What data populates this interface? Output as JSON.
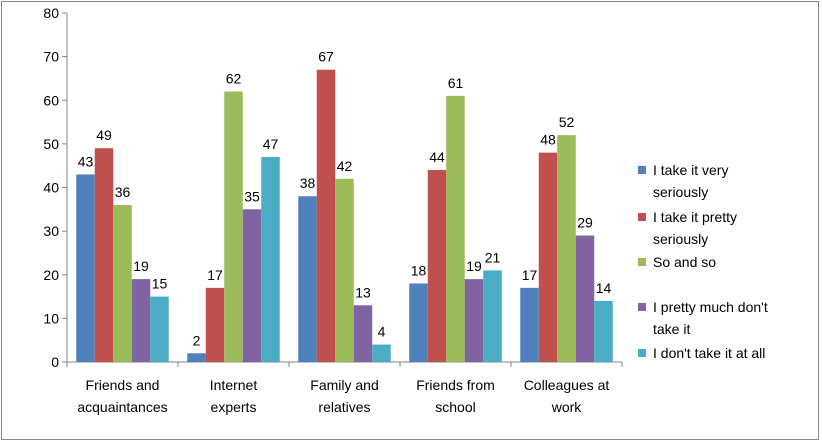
{
  "chart_data": {
    "type": "bar",
    "title": "",
    "xlabel": "",
    "ylabel": "",
    "ylim": [
      0,
      80
    ],
    "yticks": [
      0,
      10,
      20,
      30,
      40,
      50,
      60,
      70,
      80
    ],
    "grid": false,
    "legend_position": "right",
    "categories": [
      [
        "Friends and",
        "acquaintances"
      ],
      [
        "Internet",
        "experts"
      ],
      [
        "Family and",
        "relatives"
      ],
      [
        "Friends from",
        "school"
      ],
      [
        "Colleagues at",
        "work"
      ]
    ],
    "series": [
      {
        "name": [
          "I take it very",
          "seriously"
        ],
        "color": "#4F81BD",
        "values": [
          43,
          2,
          38,
          18,
          17
        ]
      },
      {
        "name": [
          "I take it pretty",
          "seriously"
        ],
        "color": "#C0504D",
        "values": [
          49,
          17,
          67,
          44,
          48
        ]
      },
      {
        "name": [
          "So and so"
        ],
        "color": "#9BBB59",
        "values": [
          36,
          62,
          42,
          61,
          52
        ]
      },
      {
        "name": [
          "I pretty much don't",
          "take it"
        ],
        "color": "#8064A2",
        "values": [
          19,
          35,
          13,
          19,
          29
        ]
      },
      {
        "name": [
          "I don't take it at all"
        ],
        "color": "#4BACC6",
        "values": [
          15,
          47,
          4,
          21,
          14
        ]
      }
    ]
  }
}
